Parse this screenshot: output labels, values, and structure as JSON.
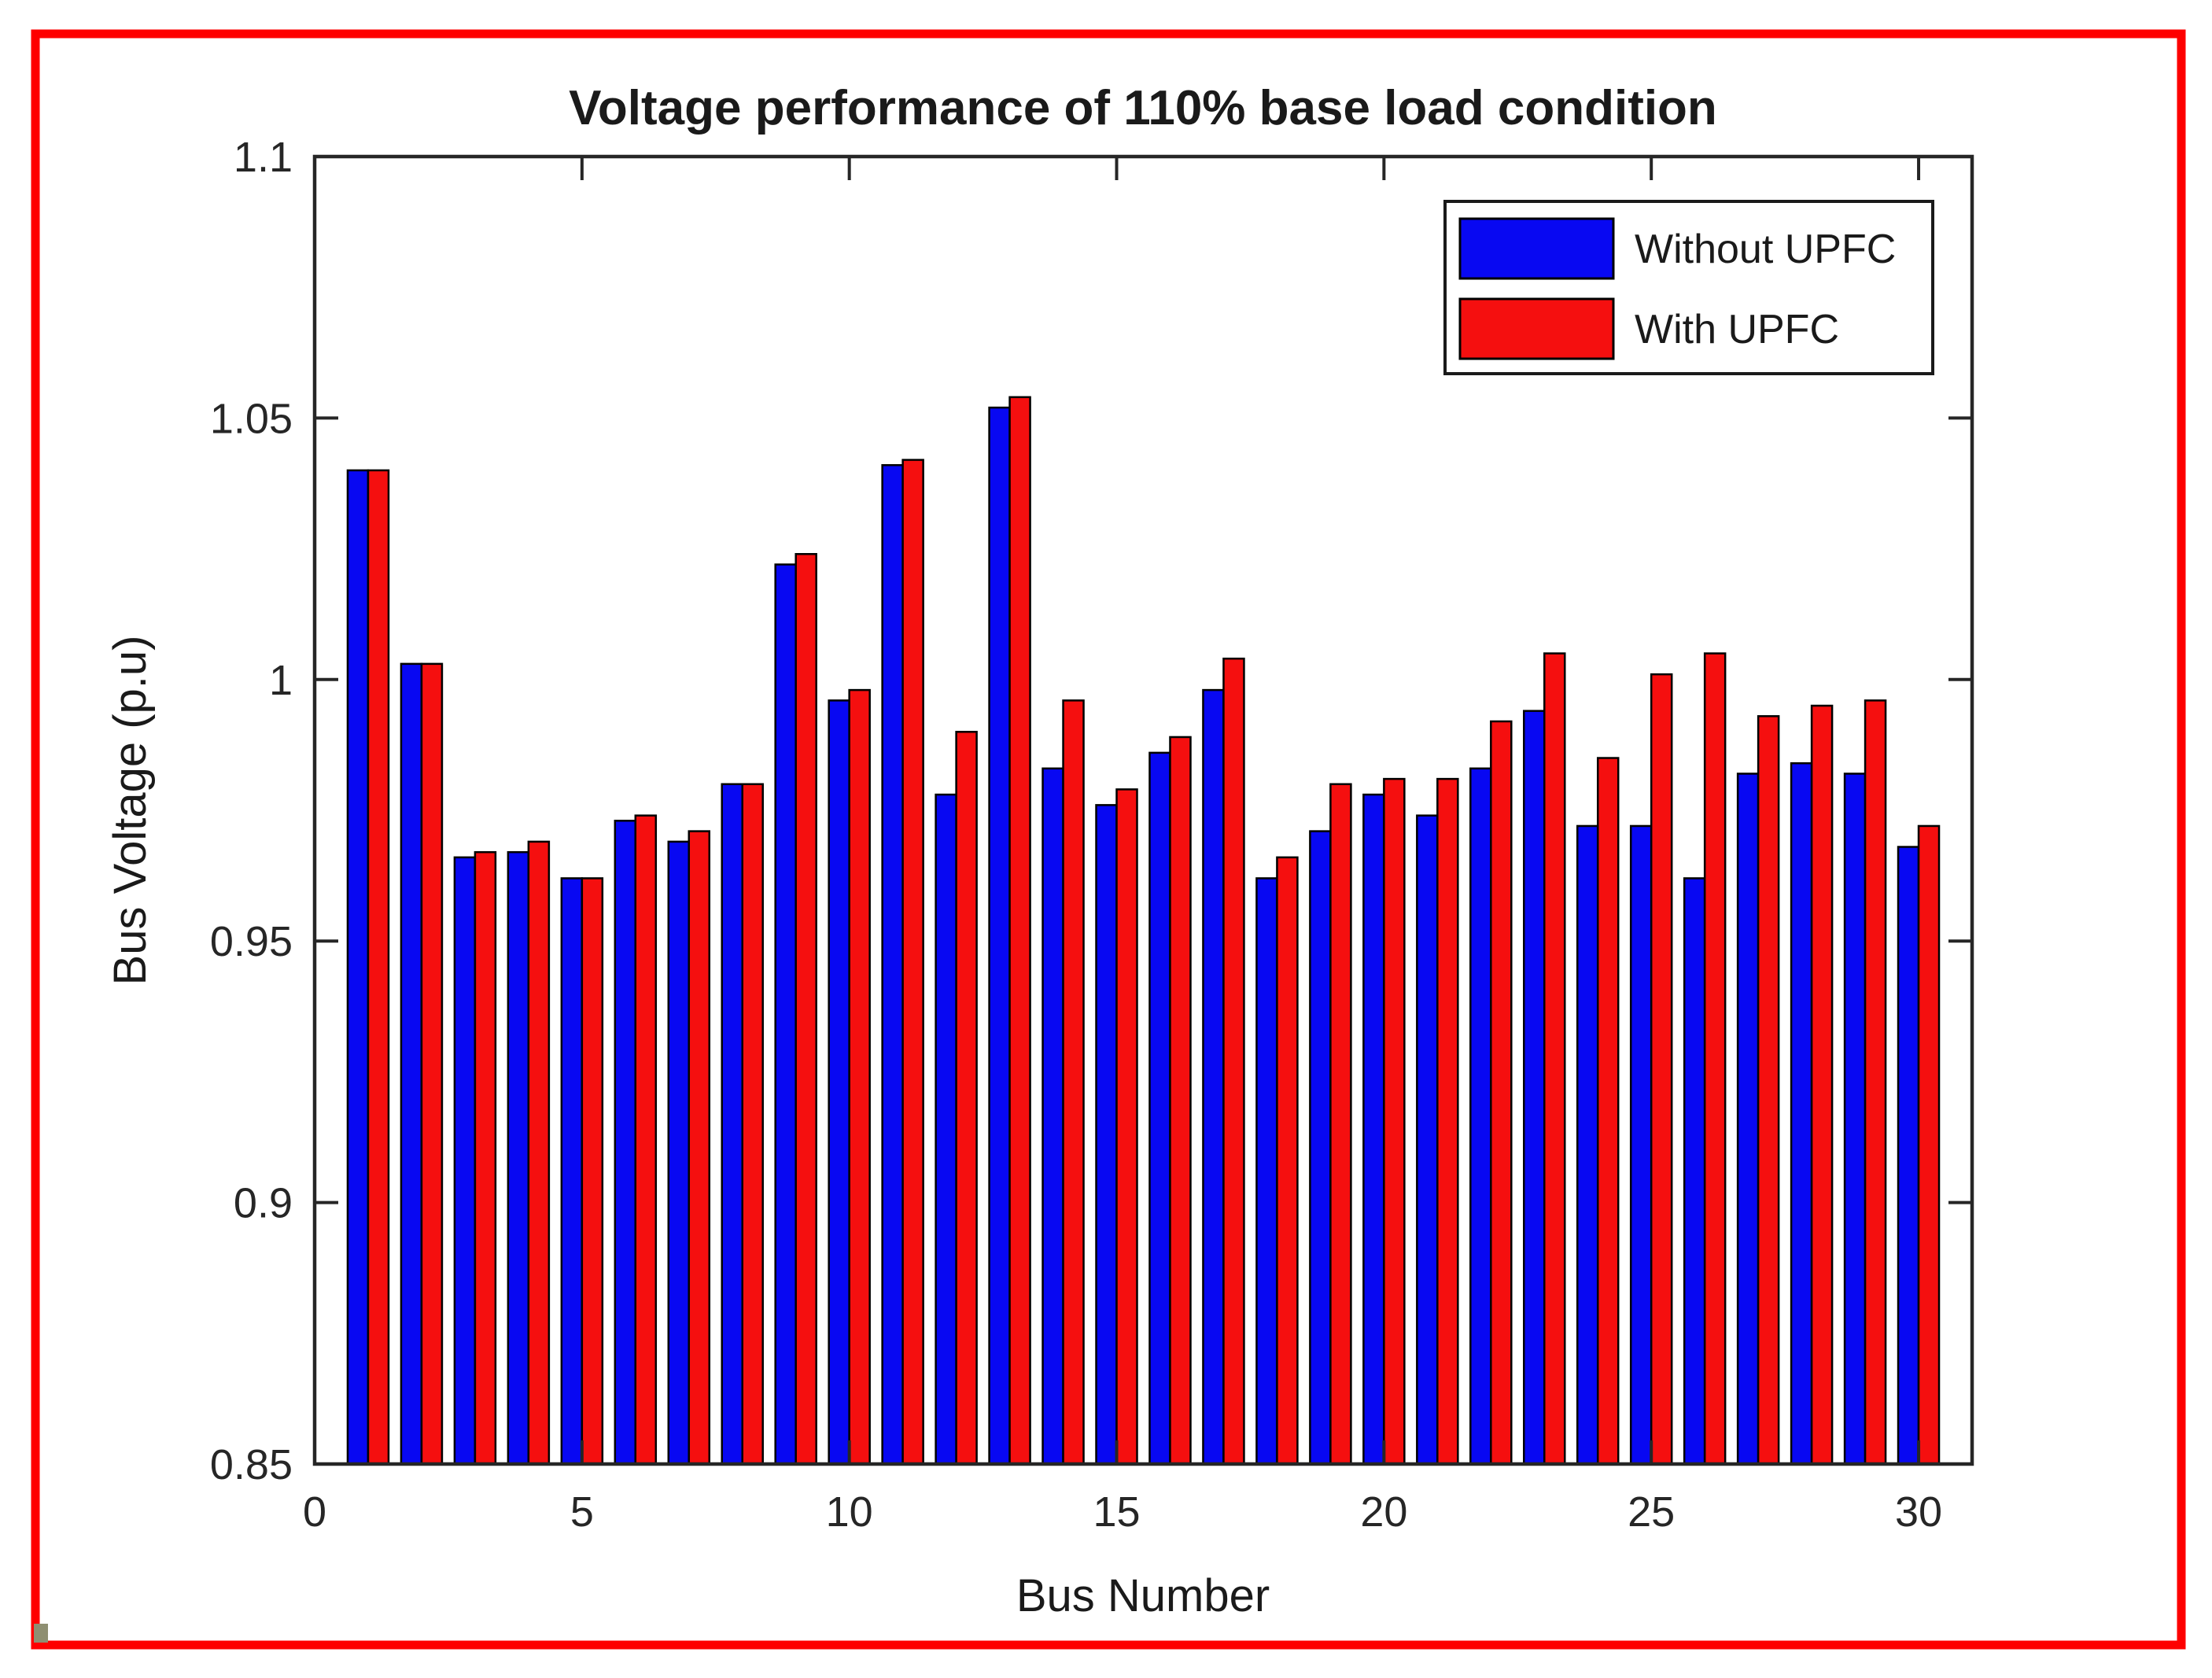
{
  "page": {
    "background": "#ffffff",
    "border_color": "#fe0000"
  },
  "chart_data": {
    "type": "bar",
    "title": "Voltage performance of 110% base load condition",
    "xlabel": "Bus Number",
    "ylabel": "Bus Voltage (p.u)",
    "xlim": [
      0,
      31
    ],
    "ylim": [
      0.85,
      1.1
    ],
    "grid": false,
    "legend_position": "top-right",
    "x_ticks": [
      0,
      5,
      10,
      15,
      20,
      25,
      30
    ],
    "y_ticks": [
      0.85,
      0.9,
      0.95,
      1,
      1.05,
      1.1
    ],
    "y_tick_labels": [
      "0.85",
      "0.9",
      "0.95",
      "1",
      "1.05",
      "1.1"
    ],
    "categories": [
      1,
      2,
      3,
      4,
      5,
      6,
      7,
      8,
      9,
      10,
      11,
      12,
      13,
      14,
      15,
      16,
      17,
      18,
      19,
      20,
      21,
      22,
      23,
      24,
      25,
      26,
      27,
      28,
      29,
      30
    ],
    "series": [
      {
        "name": "Without UPFC",
        "color": "#0808f2",
        "edge_color": "#000000",
        "values": [
          1.04,
          1.003,
          0.966,
          0.967,
          0.962,
          0.973,
          0.969,
          0.98,
          1.022,
          0.996,
          1.041,
          0.978,
          1.052,
          0.983,
          0.976,
          0.986,
          0.998,
          0.962,
          0.971,
          0.978,
          0.974,
          0.983,
          0.994,
          0.972,
          0.972,
          0.962,
          0.982,
          0.984,
          0.982,
          0.968
        ]
      },
      {
        "name": "With UPFC",
        "color": "#f50f0f",
        "edge_color": "#000000",
        "values": [
          1.04,
          1.003,
          0.967,
          0.969,
          0.962,
          0.974,
          0.971,
          0.98,
          1.024,
          0.998,
          1.042,
          0.99,
          1.054,
          0.996,
          0.979,
          0.989,
          1.004,
          0.966,
          0.98,
          0.981,
          0.981,
          0.992,
          1.005,
          0.985,
          1.001,
          1.005,
          0.993,
          0.995,
          0.996,
          0.972
        ]
      }
    ]
  }
}
